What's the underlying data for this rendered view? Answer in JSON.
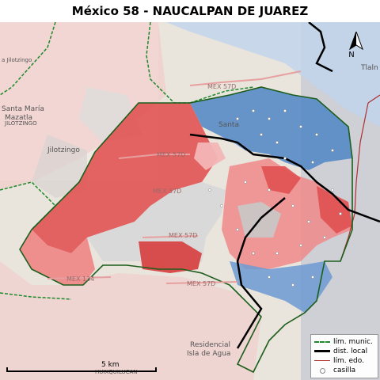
{
  "title": "México 58 - NAUCALPAN DE JUAREZ",
  "legend": {
    "items": [
      {
        "label": "lím. munic.",
        "symbol": "munic"
      },
      {
        "label": "dist. local",
        "symbol": "dist"
      },
      {
        "label": "lím. edo.",
        "symbol": "edo"
      },
      {
        "label": "casilla",
        "symbol": "casilla"
      }
    ]
  },
  "scale": {
    "label": "5 km"
  },
  "north": {
    "label": "N"
  },
  "places": {
    "jilotzingo": "Jilotzingo",
    "santa_maria": "Santa María",
    "mazatla": "Mazatla",
    "jilotzingo_badge": "JILOTZINGO",
    "jilotzingo_top": "a Jilotzingo",
    "residencial": "Residencial",
    "isla_de_agua": "Isla de Agua",
    "tlalne": "Tlaln",
    "santa": "Santa",
    "huixquilucan": "HUIXQUILUCAN"
  },
  "roads": {
    "mex57d": "MEX 57D",
    "mex134": "MEX 134"
  },
  "colors": {
    "red_strong": "#e05050",
    "red_mid": "#ee8080",
    "red_light": "#f3b5b5",
    "blue_strong": "#4f86c6",
    "blue_light": "#a8c4e6",
    "grey": "#d8d8d8",
    "district_line": "#000000",
    "munic_line": "#1c8a2a",
    "edo_line": "#b03030"
  }
}
